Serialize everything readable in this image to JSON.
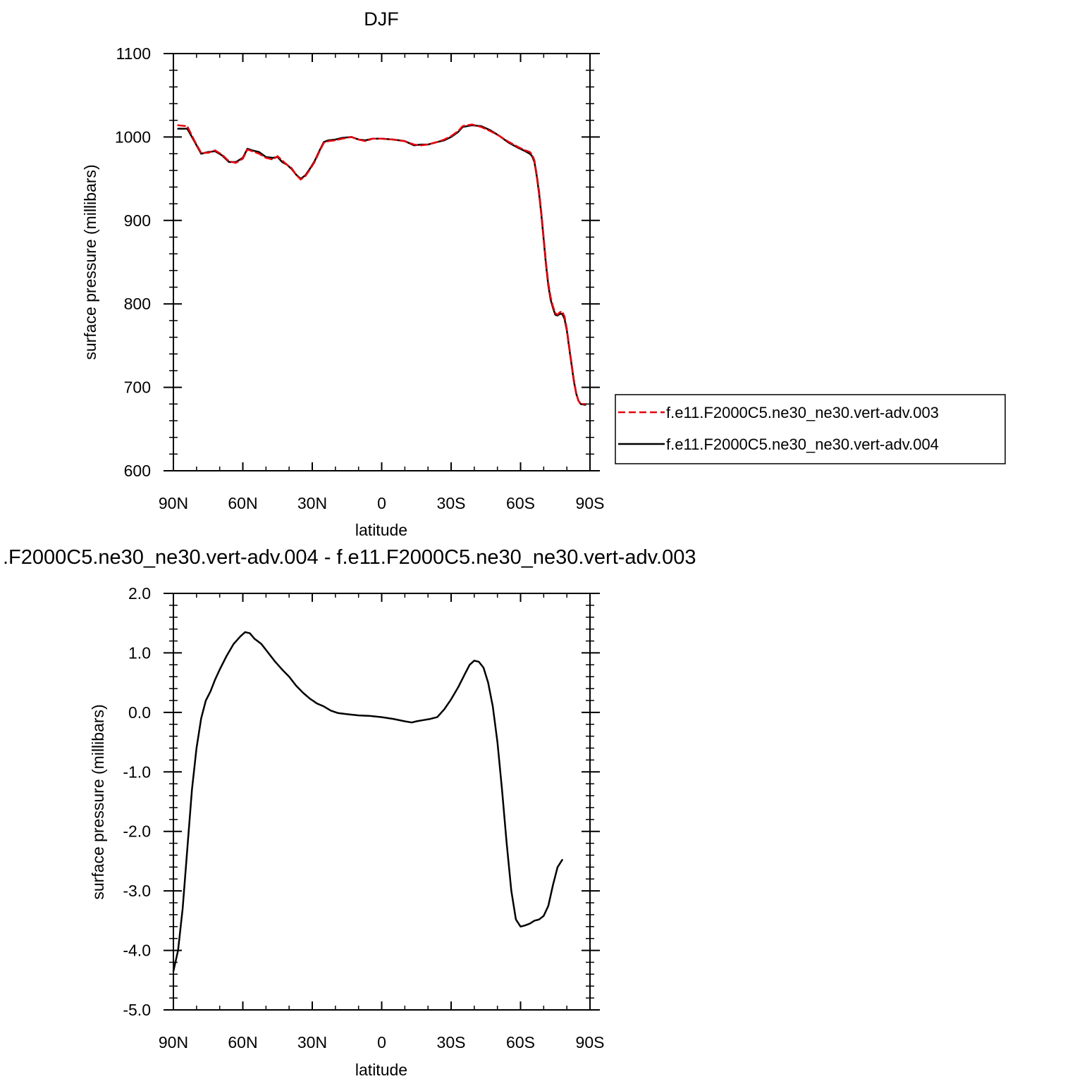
{
  "chart_data": [
    {
      "type": "line",
      "title": "DJF",
      "xlabel": "latitude",
      "ylabel": "surface pressure (millibars)",
      "xlim": [
        90,
        -90
      ],
      "ylim": [
        600,
        1100
      ],
      "x_ticks": [
        {
          "v": 90,
          "label": "90N"
        },
        {
          "v": 60,
          "label": "60N"
        },
        {
          "v": 30,
          "label": "30N"
        },
        {
          "v": 0,
          "label": "0"
        },
        {
          "v": -30,
          "label": "30S"
        },
        {
          "v": -60,
          "label": "60S"
        },
        {
          "v": -90,
          "label": "90S"
        }
      ],
      "y_ticks": [
        {
          "v": 600,
          "label": "600"
        },
        {
          "v": 700,
          "label": "700"
        },
        {
          "v": 800,
          "label": "800"
        },
        {
          "v": 900,
          "label": "900"
        },
        {
          "v": 1000,
          "label": "1000"
        },
        {
          "v": 1100,
          "label": "1100"
        }
      ],
      "legend_position": "right",
      "series": [
        {
          "name": "f.e11.F2000C5.ne30_ne30.vert-adv.003",
          "color": "#e8000b",
          "dash": "dashed",
          "points": [
            [
              88,
              1014
            ],
            [
              84,
              1013
            ],
            [
              81,
              996
            ],
            [
              78,
              981
            ],
            [
              75,
              981
            ],
            [
              72,
              984
            ],
            [
              69,
              979
            ],
            [
              66,
              971
            ],
            [
              63,
              969
            ],
            [
              60,
              974
            ],
            [
              58,
              985
            ],
            [
              56,
              983
            ],
            [
              53,
              980
            ],
            [
              50,
              975
            ],
            [
              47,
              973
            ],
            [
              45,
              977
            ],
            [
              43,
              972
            ],
            [
              41,
              967
            ],
            [
              39,
              963
            ],
            [
              37,
              955
            ],
            [
              35,
              949
            ],
            [
              33,
              953
            ],
            [
              31,
              961
            ],
            [
              29,
              970
            ],
            [
              27,
              982
            ],
            [
              25,
              993
            ],
            [
              23,
              995
            ],
            [
              20,
              996
            ],
            [
              17,
              998
            ],
            [
              13,
              1000
            ],
            [
              10,
              997
            ],
            [
              7,
              995
            ],
            [
              4,
              998
            ],
            [
              0,
              998
            ],
            [
              -5,
              997
            ],
            [
              -10,
              995
            ],
            [
              -14,
              991
            ],
            [
              -17,
              990
            ],
            [
              -20,
              991
            ],
            [
              -24,
              994
            ],
            [
              -27,
              997
            ],
            [
              -30,
              1001
            ],
            [
              -33,
              1007
            ],
            [
              -35,
              1013
            ],
            [
              -39,
              1015
            ],
            [
              -43,
              1012
            ],
            [
              -47,
              1007
            ],
            [
              -51,
              1001
            ],
            [
              -55,
              994
            ],
            [
              -59,
              988
            ],
            [
              -62,
              984
            ],
            [
              -64,
              982
            ],
            [
              -65,
              979
            ],
            [
              -66,
              972
            ],
            [
              -67,
              955
            ],
            [
              -68,
              935
            ],
            [
              -69,
              910
            ],
            [
              -70,
              880
            ],
            [
              -71,
              850
            ],
            [
              -72,
              825
            ],
            [
              -73,
              808
            ],
            [
              -74,
              797
            ],
            [
              -75,
              789
            ],
            [
              -76,
              787
            ],
            [
              -77,
              790
            ],
            [
              -78,
              791
            ],
            [
              -79,
              785
            ],
            [
              -80,
              770
            ],
            [
              -81,
              750
            ],
            [
              -82,
              730
            ],
            [
              -83,
              710
            ],
            [
              -84,
              694
            ],
            [
              -85,
              684
            ],
            [
              -86,
              680
            ],
            [
              -88,
              680
            ]
          ]
        },
        {
          "name": "f.e11.F2000C5.ne30_ne30.vert-adv.004",
          "color": "#000000",
          "dash": "solid",
          "points": [
            [
              88,
              1010
            ],
            [
              84,
              1010
            ],
            [
              81,
              995
            ],
            [
              78,
              980
            ],
            [
              75,
              982
            ],
            [
              72,
              983
            ],
            [
              69,
              978
            ],
            [
              66,
              970
            ],
            [
              63,
              970
            ],
            [
              60,
              975
            ],
            [
              58,
              986
            ],
            [
              56,
              984
            ],
            [
              53,
              982
            ],
            [
              50,
              976
            ],
            [
              47,
              975
            ],
            [
              45,
              976
            ],
            [
              43,
              970
            ],
            [
              41,
              967
            ],
            [
              39,
              962
            ],
            [
              37,
              955
            ],
            [
              35,
              950
            ],
            [
              33,
              954
            ],
            [
              31,
              962
            ],
            [
              29,
              971
            ],
            [
              27,
              983
            ],
            [
              25,
              994
            ],
            [
              23,
              996
            ],
            [
              20,
              997
            ],
            [
              17,
              999
            ],
            [
              13,
              1000
            ],
            [
              10,
              997
            ],
            [
              7,
              996
            ],
            [
              4,
              998
            ],
            [
              0,
              998
            ],
            [
              -5,
              997
            ],
            [
              -10,
              995
            ],
            [
              -14,
              990
            ],
            [
              -17,
              991
            ],
            [
              -20,
              991
            ],
            [
              -24,
              994
            ],
            [
              -27,
              996
            ],
            [
              -30,
              1000
            ],
            [
              -33,
              1006
            ],
            [
              -35,
              1012
            ],
            [
              -39,
              1014
            ],
            [
              -43,
              1013
            ],
            [
              -47,
              1008
            ],
            [
              -51,
              1001
            ],
            [
              -55,
              993
            ],
            [
              -59,
              987
            ],
            [
              -62,
              983
            ],
            [
              -64,
              980
            ],
            [
              -65,
              977
            ],
            [
              -66,
              970
            ],
            [
              -67,
              953
            ],
            [
              -68,
              932
            ],
            [
              -69,
              907
            ],
            [
              -70,
              877
            ],
            [
              -71,
              847
            ],
            [
              -72,
              822
            ],
            [
              -73,
              805
            ],
            [
              -74,
              795
            ],
            [
              -75,
              787
            ],
            [
              -76,
              786
            ],
            [
              -77,
              788
            ],
            [
              -78,
              788
            ],
            [
              -79,
              782
            ],
            [
              -80,
              768
            ],
            [
              -81,
              748
            ],
            [
              -82,
              728
            ],
            [
              -83,
              708
            ],
            [
              -84,
              693
            ],
            [
              -85,
              684
            ],
            [
              -86,
              680
            ],
            [
              -88,
              679
            ]
          ]
        }
      ]
    },
    {
      "type": "line",
      "title": ".F2000C5.ne30_ne30.vert-adv.004 - f.e11.F2000C5.ne30_ne30.vert-adv.003",
      "xlabel": "latitude",
      "ylabel": "surface pressure (millibars)",
      "xlim": [
        90,
        -90
      ],
      "ylim": [
        -5.0,
        2.0
      ],
      "x_ticks": [
        {
          "v": 90,
          "label": "90N"
        },
        {
          "v": 60,
          "label": "60N"
        },
        {
          "v": 30,
          "label": "30N"
        },
        {
          "v": 0,
          "label": "0"
        },
        {
          "v": -30,
          "label": "30S"
        },
        {
          "v": -60,
          "label": "60S"
        },
        {
          "v": -90,
          "label": "90S"
        }
      ],
      "y_ticks": [
        {
          "v": -5,
          "label": "-5.0"
        },
        {
          "v": -4,
          "label": "-4.0"
        },
        {
          "v": -3,
          "label": "-3.0"
        },
        {
          "v": -2,
          "label": "-2.0"
        },
        {
          "v": -1,
          "label": "-1.0"
        },
        {
          "v": 0,
          "label": "0.0"
        },
        {
          "v": 1,
          "label": "1.0"
        },
        {
          "v": 2,
          "label": "2.0"
        }
      ],
      "series": [
        {
          "color": "#000000",
          "dash": "solid",
          "points": [
            [
              90,
              -4.35
            ],
            [
              88,
              -4.0
            ],
            [
              86,
              -3.3
            ],
            [
              84,
              -2.3
            ],
            [
              82,
              -1.3
            ],
            [
              80,
              -0.6
            ],
            [
              78,
              -0.1
            ],
            [
              76,
              0.2
            ],
            [
              74,
              0.35
            ],
            [
              72,
              0.55
            ],
            [
              70,
              0.72
            ],
            [
              67,
              0.95
            ],
            [
              64,
              1.15
            ],
            [
              61,
              1.28
            ],
            [
              59,
              1.35
            ],
            [
              57,
              1.33
            ],
            [
              55,
              1.24
            ],
            [
              52,
              1.15
            ],
            [
              49,
              1.0
            ],
            [
              46,
              0.85
            ],
            [
              43,
              0.72
            ],
            [
              40,
              0.6
            ],
            [
              37,
              0.45
            ],
            [
              34,
              0.33
            ],
            [
              31,
              0.23
            ],
            [
              28,
              0.15
            ],
            [
              25,
              0.1
            ],
            [
              22,
              0.03
            ],
            [
              19,
              -0.01
            ],
            [
              15,
              -0.03
            ],
            [
              10,
              -0.05
            ],
            [
              5,
              -0.06
            ],
            [
              0,
              -0.08
            ],
            [
              -5,
              -0.11
            ],
            [
              -10,
              -0.15
            ],
            [
              -13,
              -0.17
            ],
            [
              -15,
              -0.15
            ],
            [
              -18,
              -0.13
            ],
            [
              -21,
              -0.11
            ],
            [
              -24,
              -0.08
            ],
            [
              -27,
              0.05
            ],
            [
              -30,
              0.22
            ],
            [
              -33,
              0.42
            ],
            [
              -36,
              0.65
            ],
            [
              -38,
              0.8
            ],
            [
              -40,
              0.87
            ],
            [
              -42,
              0.85
            ],
            [
              -44,
              0.75
            ],
            [
              -46,
              0.5
            ],
            [
              -48,
              0.1
            ],
            [
              -50,
              -0.5
            ],
            [
              -52,
              -1.3
            ],
            [
              -54,
              -2.2
            ],
            [
              -56,
              -3.0
            ],
            [
              -58,
              -3.48
            ],
            [
              -60,
              -3.6
            ],
            [
              -62,
              -3.58
            ],
            [
              -64,
              -3.55
            ],
            [
              -66,
              -3.5
            ],
            [
              -68,
              -3.48
            ],
            [
              -70,
              -3.42
            ],
            [
              -72,
              -3.25
            ],
            [
              -74,
              -2.9
            ],
            [
              -76,
              -2.6
            ],
            [
              -78,
              -2.48
            ]
          ]
        }
      ]
    }
  ]
}
